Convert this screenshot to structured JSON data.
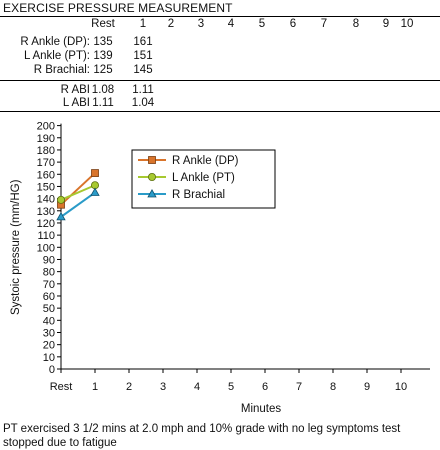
{
  "table": {
    "title": "EXERCISE PRESSURE MEASUREMENT",
    "columns": [
      "Rest",
      "1",
      "2",
      "3",
      "4",
      "5",
      "6",
      "7",
      "8",
      "9",
      "10"
    ],
    "rows": [
      {
        "label": "R Ankle (DP):",
        "values": [
          "135",
          "161"
        ]
      },
      {
        "label": "L Ankle (PT):",
        "values": [
          "139",
          "151"
        ]
      },
      {
        "label": "R Brachial:",
        "values": [
          "125",
          "145"
        ]
      }
    ],
    "abi_rows": [
      {
        "label": "R ABI",
        "values": [
          "1.08",
          "1.11"
        ]
      },
      {
        "label": "L ABI",
        "values": [
          "1.11",
          "1.04"
        ]
      }
    ]
  },
  "chart_data": {
    "type": "line",
    "categories": [
      "Rest",
      "1",
      "2",
      "3",
      "4",
      "5",
      "6",
      "7",
      "8",
      "9",
      "10"
    ],
    "x": [
      0,
      1,
      2,
      3,
      4,
      5,
      6,
      7,
      8,
      9,
      10
    ],
    "series": [
      {
        "name": "R Ankle (DP)",
        "x": [
          0,
          1
        ],
        "values": [
          135,
          161
        ],
        "color": "#d9742b",
        "marker": "square"
      },
      {
        "name": "L Ankle (PT)",
        "x": [
          0,
          1
        ],
        "values": [
          139,
          151
        ],
        "color": "#a7c930",
        "marker": "circle"
      },
      {
        "name": "R Brachial",
        "x": [
          0,
          1
        ],
        "values": [
          125,
          145
        ],
        "color": "#2a9bc8",
        "marker": "triangle"
      }
    ],
    "xlabel": "Minutes",
    "ylabel": "Systoic pressure (mm/HG)",
    "ylim": [
      0,
      200
    ],
    "ytick_step": 10,
    "grid": false,
    "legend": "top-center"
  },
  "note": "PT exercised 3 1/2 mins at 2.0 mph and 10% grade with no leg symptoms test stopped due to fatigue"
}
